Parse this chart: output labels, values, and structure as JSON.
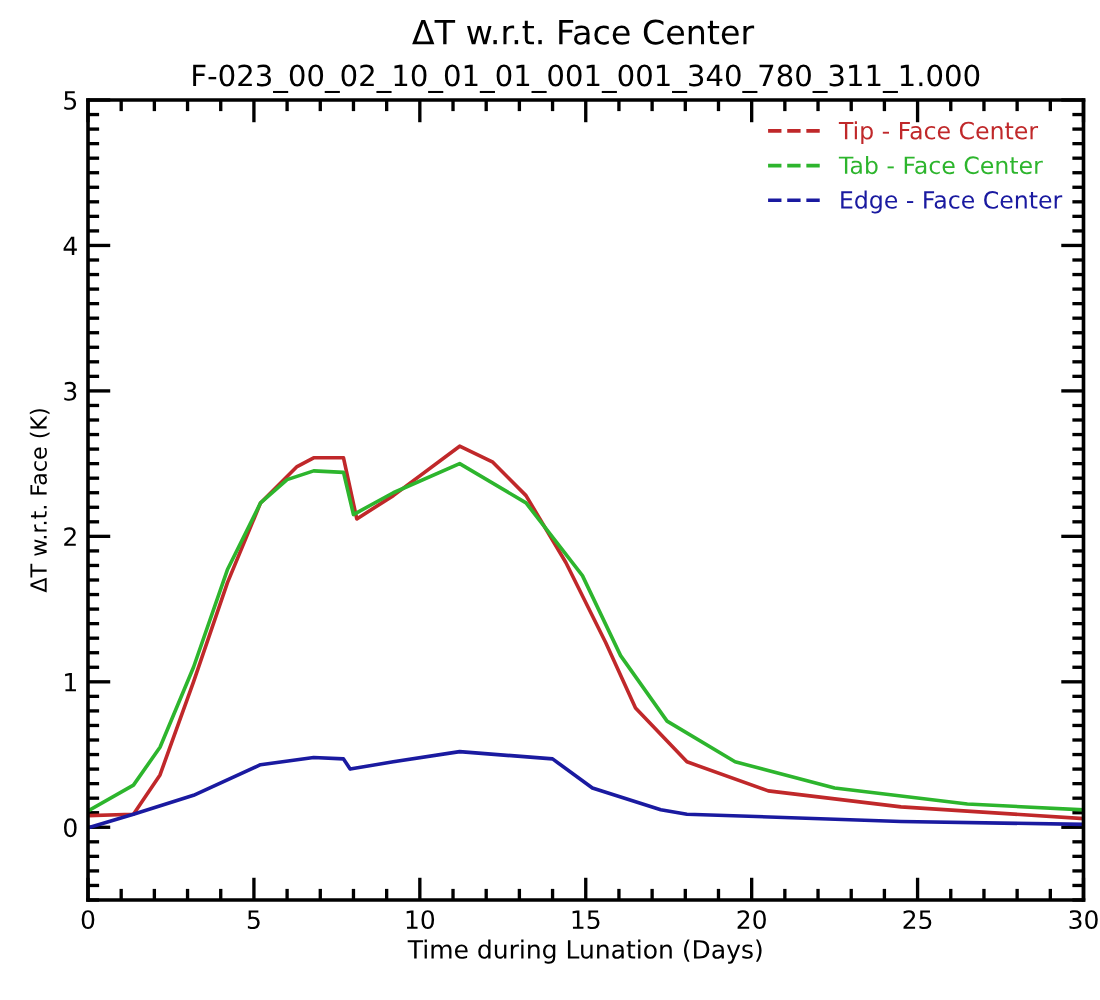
{
  "chart_data": {
    "type": "line",
    "title": "ΔT w.r.t. Face Center",
    "subtitle": "F-023_00_02_10_01_01_001_001_340_780_311_1.000",
    "xlabel": "Time during Lunation (Days)",
    "ylabel": "ΔT w.r.t. Face (K)",
    "xlim": [
      0,
      30
    ],
    "xticks": [
      0,
      5,
      10,
      15,
      20,
      25,
      30
    ],
    "ylim": [
      -0.5,
      5
    ],
    "yticks": [
      0,
      1,
      2,
      3,
      4,
      5
    ],
    "grid": false,
    "legend": "top right",
    "line_style": "solid",
    "marker": "none",
    "series": [
      {
        "name": "Tip - Face Center",
        "color": "#c0282a",
        "x": [
          0.06,
          1.37,
          2.17,
          3.18,
          4.2,
          5.2,
          6.3,
          6.8,
          7.7,
          8.1,
          9.2,
          11.2,
          12.2,
          13.2,
          14.4,
          15.6,
          16.5,
          18.05,
          20.5,
          24.5,
          30
        ],
        "values": [
          0.08,
          0.09,
          0.36,
          1.0,
          1.68,
          2.23,
          2.48,
          2.54,
          2.54,
          2.12,
          2.28,
          2.62,
          2.51,
          2.28,
          1.82,
          1.27,
          0.82,
          0.45,
          0.25,
          0.14,
          0.06
        ]
      },
      {
        "name": "Tab - Face Center",
        "color": "#2db52d",
        "x": [
          0.06,
          1.37,
          2.17,
          3.18,
          4.2,
          5.2,
          6.0,
          6.8,
          7.7,
          8.0,
          9.2,
          11.2,
          13.2,
          14.9,
          16.05,
          17.45,
          19.5,
          22.5,
          26.5,
          30
        ],
        "values": [
          0.12,
          0.29,
          0.55,
          1.1,
          1.77,
          2.23,
          2.39,
          2.45,
          2.44,
          2.15,
          2.3,
          2.5,
          2.23,
          1.73,
          1.18,
          0.73,
          0.45,
          0.27,
          0.16,
          0.12
        ]
      },
      {
        "name": "Edge - Face Center",
        "color": "#1a1aa0",
        "x": [
          0.06,
          1.37,
          3.18,
          5.2,
          6.8,
          7.7,
          7.9,
          9.2,
          11.2,
          14.0,
          15.2,
          17.26,
          18.05,
          24.5,
          30
        ],
        "values": [
          0.0,
          0.09,
          0.22,
          0.43,
          0.48,
          0.47,
          0.4,
          0.45,
          0.52,
          0.47,
          0.27,
          0.12,
          0.09,
          0.04,
          0.02
        ]
      }
    ]
  }
}
